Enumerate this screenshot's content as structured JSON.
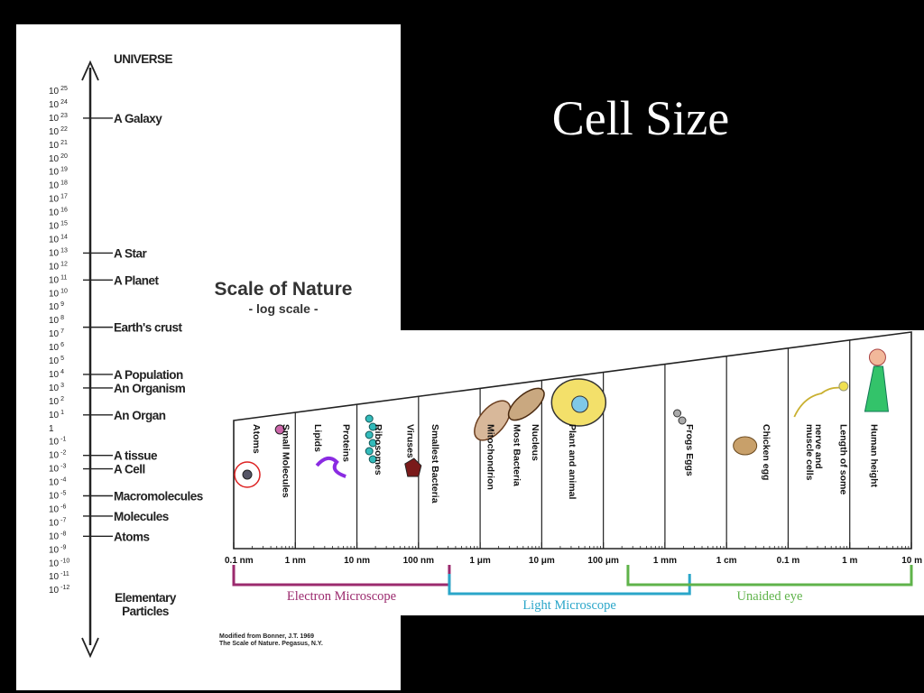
{
  "slide": {
    "title": "Cell Size"
  },
  "scale_of_nature": {
    "title": "Scale of Nature",
    "subtitle": "- log scale -",
    "top_label": "UNIVERSE",
    "bottom_label_line1": "Elementary",
    "bottom_label_line2": "Particles",
    "credit_line1": "Modified from Bonner, J.T. 1969",
    "credit_line2": "The Scale of Nature. Pegasus, N.Y.",
    "exponents": [
      {
        "base": "10",
        "exp": "25"
      },
      {
        "base": "10",
        "exp": "24"
      },
      {
        "base": "10",
        "exp": "23"
      },
      {
        "base": "10",
        "exp": "22"
      },
      {
        "base": "10",
        "exp": "21"
      },
      {
        "base": "10",
        "exp": "20"
      },
      {
        "base": "10",
        "exp": "19"
      },
      {
        "base": "10",
        "exp": "18"
      },
      {
        "base": "10",
        "exp": "17"
      },
      {
        "base": "10",
        "exp": "16"
      },
      {
        "base": "10",
        "exp": "15"
      },
      {
        "base": "10",
        "exp": "14"
      },
      {
        "base": "10",
        "exp": "13"
      },
      {
        "base": "10",
        "exp": "12"
      },
      {
        "base": "10",
        "exp": "11"
      },
      {
        "base": "10",
        "exp": "10"
      },
      {
        "base": "10",
        "exp": "9"
      },
      {
        "base": "10",
        "exp": "8"
      },
      {
        "base": "10",
        "exp": "7"
      },
      {
        "base": "10",
        "exp": "6"
      },
      {
        "base": "10",
        "exp": "5"
      },
      {
        "base": "10",
        "exp": "4"
      },
      {
        "base": "10",
        "exp": "3"
      },
      {
        "base": "10",
        "exp": "2"
      },
      {
        "base": "10",
        "exp": "1"
      },
      {
        "base": "1",
        "exp": ""
      },
      {
        "base": "10",
        "exp": "-1"
      },
      {
        "base": "10",
        "exp": "-2"
      },
      {
        "base": "10",
        "exp": "-3"
      },
      {
        "base": "10",
        "exp": "-4"
      },
      {
        "base": "10",
        "exp": "-5"
      },
      {
        "base": "10",
        "exp": "-6"
      },
      {
        "base": "10",
        "exp": "-7"
      },
      {
        "base": "10",
        "exp": "-8"
      },
      {
        "base": "10",
        "exp": "-9"
      },
      {
        "base": "10",
        "exp": "-10"
      },
      {
        "base": "10",
        "exp": "-11"
      },
      {
        "base": "10",
        "exp": "-12"
      }
    ],
    "markers": [
      {
        "label": "A Galaxy",
        "at": 23
      },
      {
        "label": "A Star",
        "at": 13
      },
      {
        "label": "A Planet",
        "at": 11
      },
      {
        "label": "Earth's crust",
        "at": 7.5
      },
      {
        "label": "A Population",
        "at": 4
      },
      {
        "label": "An Organism",
        "at": 3
      },
      {
        "label": "An Organ",
        "at": 1
      },
      {
        "label": "A tissue",
        "at": -2
      },
      {
        "label": "A Cell",
        "at": -3
      },
      {
        "label": "Macromolecules",
        "at": -5
      },
      {
        "label": "Molecules",
        "at": -6.5
      },
      {
        "label": "Atoms",
        "at": -8
      }
    ]
  },
  "cell_scale": {
    "items": [
      {
        "label": "Atoms",
        "col": 0,
        "pos": 0.32
      },
      {
        "label": "Small Molecules",
        "col": 0,
        "pos": 0.8
      },
      {
        "label": "Lipids",
        "col": 1,
        "pos": 0.32
      },
      {
        "label": "Proteins",
        "col": 1,
        "pos": 0.78
      },
      {
        "label": "Ribosomes",
        "col": 2,
        "pos": 0.3
      },
      {
        "label": "Viruses",
        "col": 2,
        "pos": 0.82
      },
      {
        "label": "Smallest Bacteria",
        "col": 3,
        "pos": 0.22
      },
      {
        "label": "Mitochondrion",
        "col": 4,
        "pos": 0.12
      },
      {
        "label": "Most Bacteria",
        "col": 4,
        "pos": 0.55
      },
      {
        "label": "Nucleus",
        "col": 4,
        "pos": 0.85
      },
      {
        "label": "Plant and animal",
        "col": 5,
        "pos": 0.45
      },
      {
        "label": "Frogs Eggs",
        "col": 7,
        "pos": 0.35
      },
      {
        "label": "Chicken egg",
        "col": 8,
        "pos": 0.6
      },
      {
        "label": "nerve and",
        "col": 9,
        "pos": 0.45
      },
      {
        "label": "muscle cells",
        "col": 9,
        "pos": 0.3
      },
      {
        "label": "Length of some",
        "col": 9,
        "pos": 0.85
      },
      {
        "label": "Human height",
        "col": 10,
        "pos": 0.35
      }
    ],
    "ticks": [
      "0.1 nm",
      "1 nm",
      "10 nm",
      "100 nm",
      "1 μm",
      "10 μm",
      "100 μm",
      "1 mm",
      "1 cm",
      "0.1 m",
      "1 m",
      "10 m"
    ],
    "ranges": [
      {
        "label": "Electron Microscope",
        "from": 0,
        "to": 3.5,
        "color": "#9b2a6e"
      },
      {
        "label": "Light Microscope",
        "from": 3.5,
        "to": 7.4,
        "color": "#2aa6c9"
      },
      {
        "label": "Unaided eye",
        "from": 6.4,
        "to": 11,
        "color": "#5fb34a"
      }
    ]
  }
}
